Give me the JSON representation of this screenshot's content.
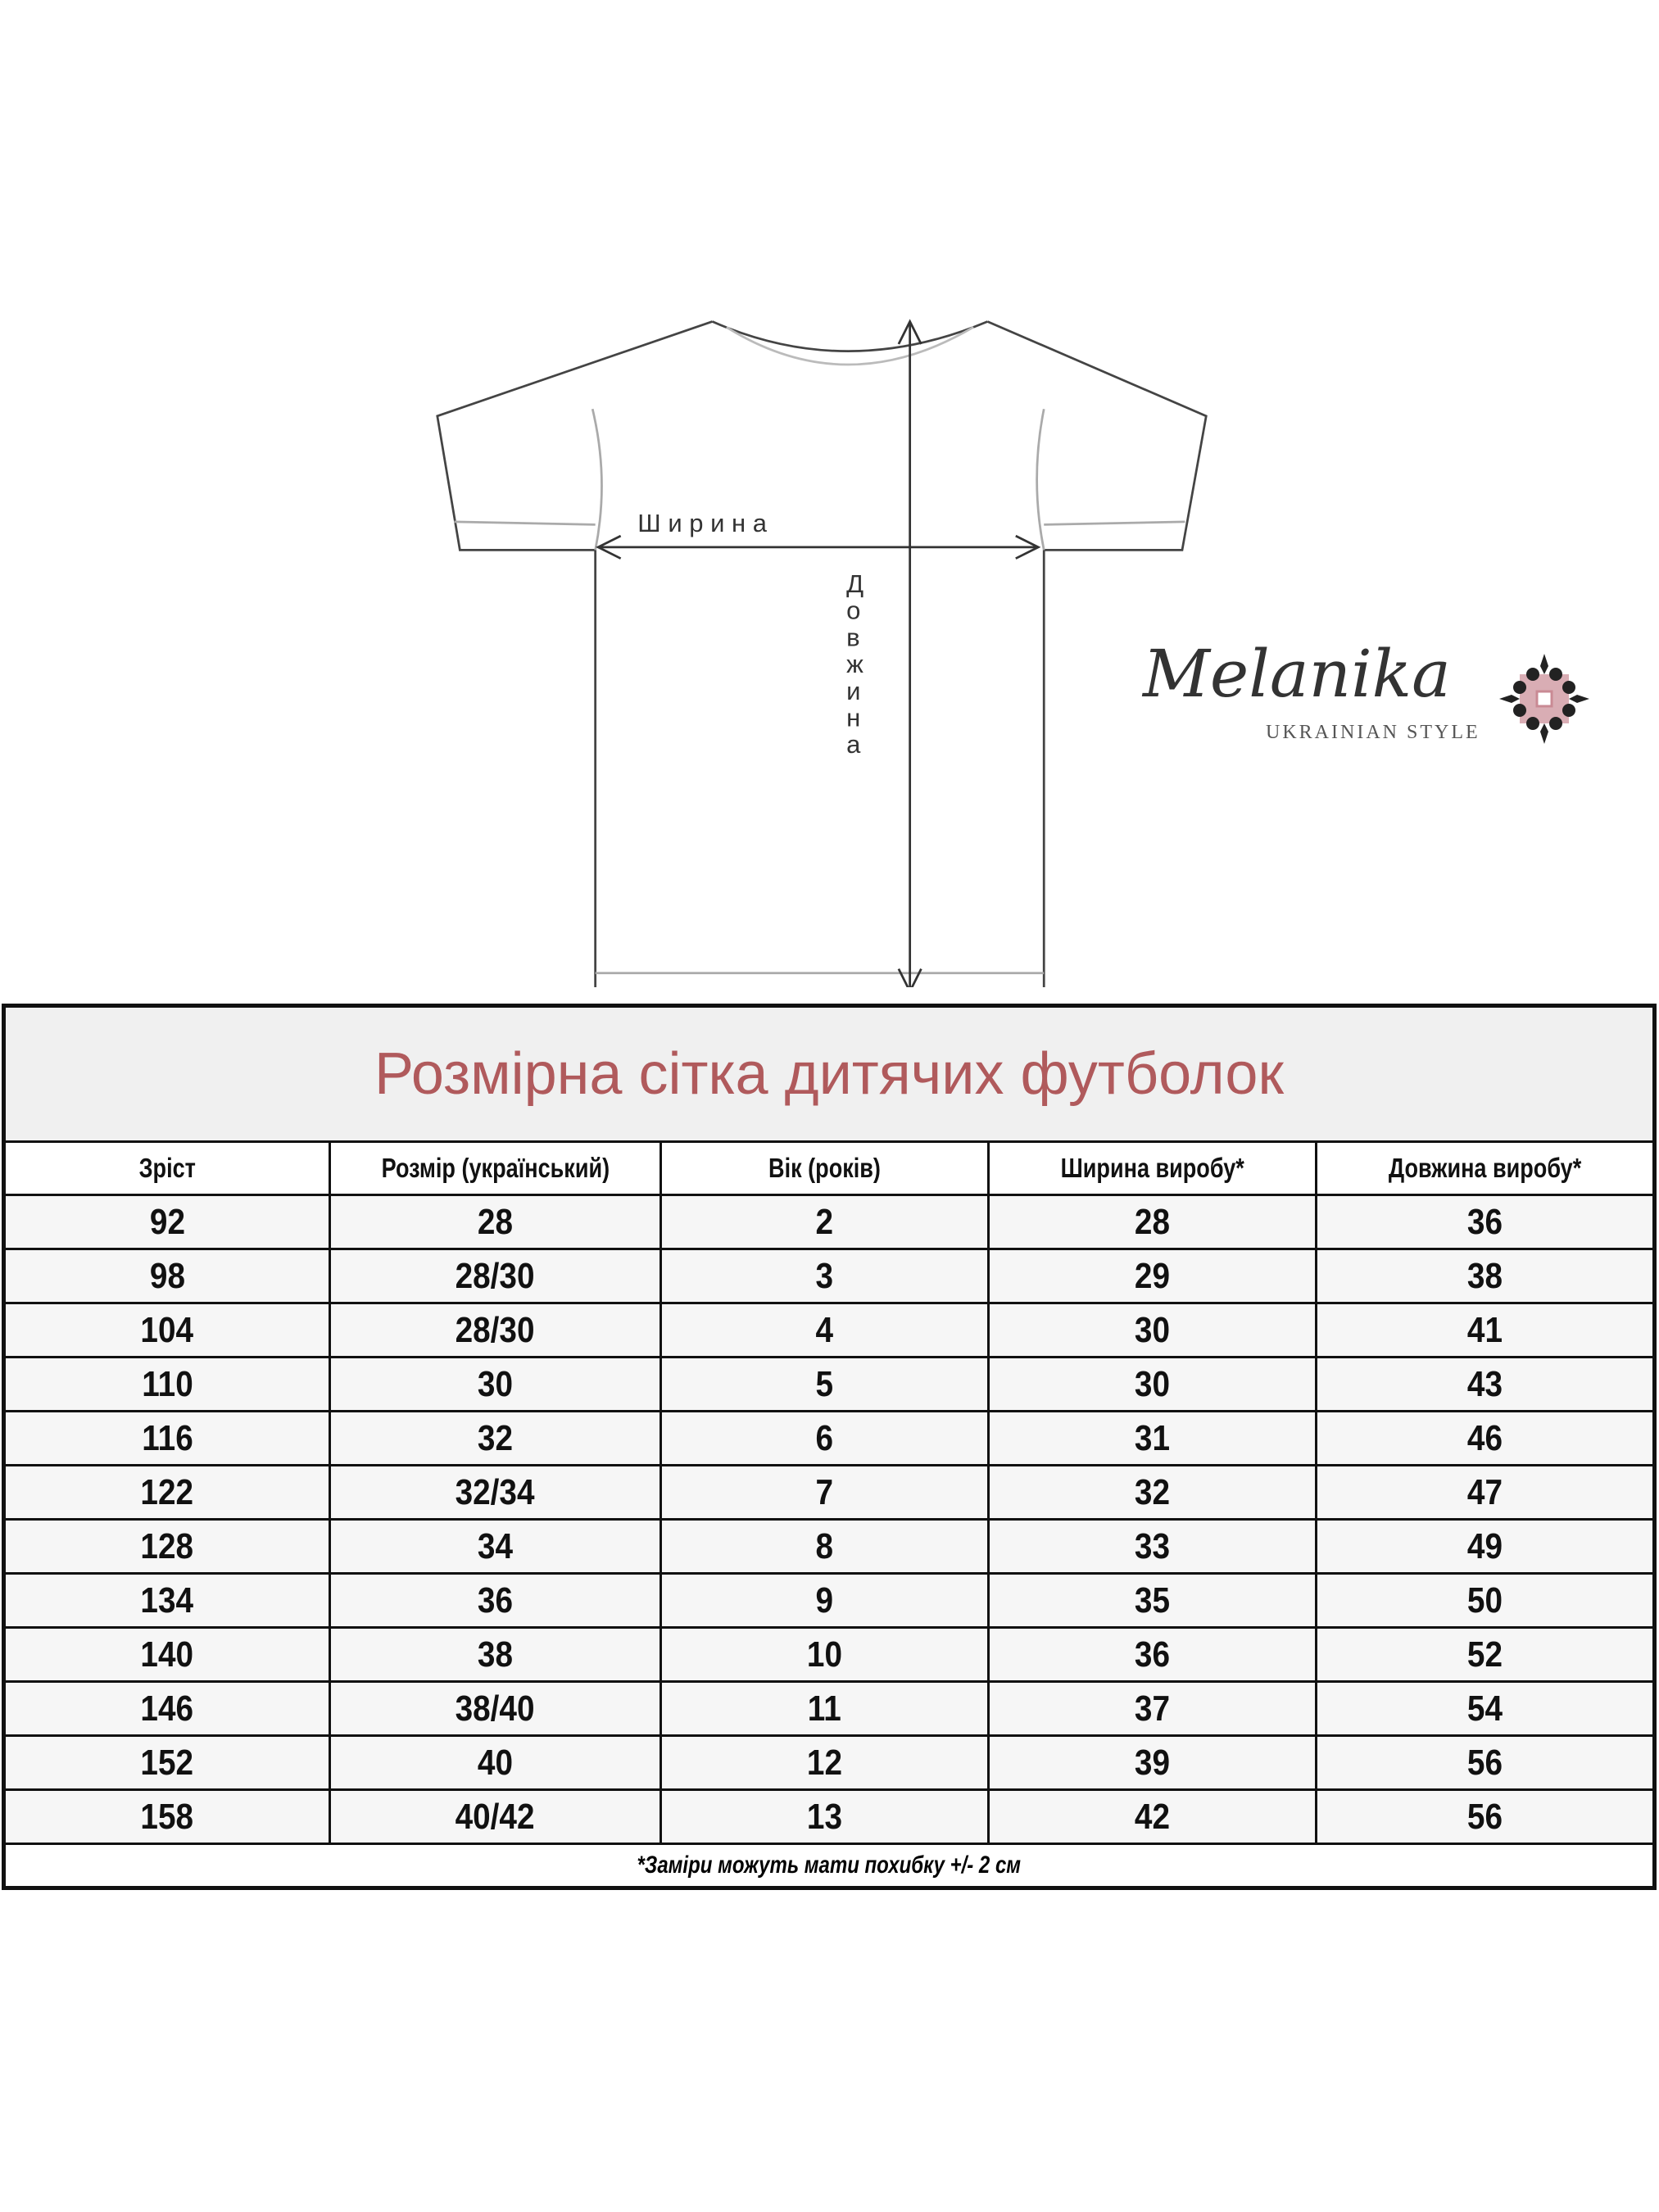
{
  "diagram": {
    "width_label": "Ширина",
    "length_label": "Довжина"
  },
  "logo": {
    "name": "Melanika",
    "tagline": "UKRAINIAN STYLE",
    "colors": {
      "ornament_dark": "#222222",
      "ornament_accent": "#c98a94"
    }
  },
  "table": {
    "title": "Розмірна сітка дитячих футболок",
    "title_color": "#b05a5c",
    "headers": [
      "Зріст",
      "Розмір (український)",
      "Вік (років)",
      "Ширина виробу*",
      "Довжина виробу*"
    ],
    "rows": [
      [
        "92",
        "28",
        "2",
        "28",
        "36"
      ],
      [
        "98",
        "28/30",
        "3",
        "29",
        "38"
      ],
      [
        "104",
        "28/30",
        "4",
        "30",
        "41"
      ],
      [
        "110",
        "30",
        "5",
        "30",
        "43"
      ],
      [
        "116",
        "32",
        "6",
        "31",
        "46"
      ],
      [
        "122",
        "32/34",
        "7",
        "32",
        "47"
      ],
      [
        "128",
        "34",
        "8",
        "33",
        "49"
      ],
      [
        "134",
        "36",
        "9",
        "35",
        "50"
      ],
      [
        "140",
        "38",
        "10",
        "36",
        "52"
      ],
      [
        "146",
        "38/40",
        "11",
        "37",
        "54"
      ],
      [
        "152",
        "40",
        "12",
        "39",
        "56"
      ],
      [
        "158",
        "40/42",
        "13",
        "42",
        "56"
      ]
    ],
    "footnote": "*Заміри можуть мати похибку +/- 2 см"
  }
}
